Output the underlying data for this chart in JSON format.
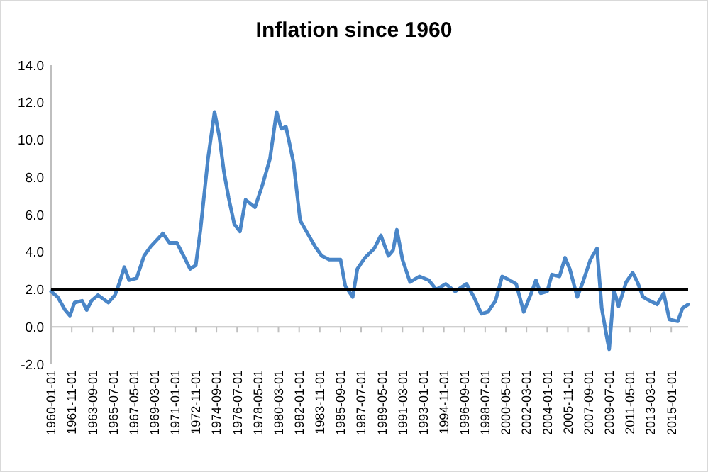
{
  "chart_data": {
    "type": "line",
    "title": "Inflation since 1960",
    "x": [
      "1960-01",
      "1960-08",
      "1961-04",
      "1961-09",
      "1962-02",
      "1962-10",
      "1963-03",
      "1963-08",
      "1964-03",
      "1965-02",
      "1965-09",
      "1966-02",
      "1966-07",
      "1966-12",
      "1967-08",
      "1968-04",
      "1968-11",
      "1969-12",
      "1970-07",
      "1971-03",
      "1971-11",
      "1972-05",
      "1972-11",
      "1973-04",
      "1973-12",
      "1974-07",
      "1974-12",
      "1975-05",
      "1975-10",
      "1976-04",
      "1976-10",
      "1977-04",
      "1978-02",
      "1978-10",
      "1979-06",
      "1980-01",
      "1980-06",
      "1980-11",
      "1981-07",
      "1982-02",
      "1982-10",
      "1983-06",
      "1984-01",
      "1984-09",
      "1985-09",
      "1986-02",
      "1986-10",
      "1987-03",
      "1987-11",
      "1988-09",
      "1989-04",
      "1989-12",
      "1990-05",
      "1990-09",
      "1991-03",
      "1991-11",
      "1992-09",
      "1993-07",
      "1994-03",
      "1995-01",
      "1995-11",
      "1996-11",
      "1997-07",
      "1998-03",
      "1998-10",
      "1999-06",
      "2000-01",
      "2000-09",
      "2001-04",
      "2001-12",
      "2002-08",
      "2003-01",
      "2003-06",
      "2004-01",
      "2004-06",
      "2005-02",
      "2005-08",
      "2006-01",
      "2006-09",
      "2007-03",
      "2007-11",
      "2008-06",
      "2008-11",
      "2009-05",
      "2009-07",
      "2009-12",
      "2010-05",
      "2011-01",
      "2011-08",
      "2012-01",
      "2012-07",
      "2013-02",
      "2013-10",
      "2014-05",
      "2014-11",
      "2015-08",
      "2016-01",
      "2016-07"
    ],
    "series": [
      {
        "color": "#4a86c8",
        "values": [
          1.9,
          1.6,
          0.9,
          0.6,
          1.3,
          1.4,
          0.9,
          1.4,
          1.7,
          1.3,
          1.7,
          2.4,
          3.2,
          2.5,
          2.6,
          3.8,
          4.3,
          5.0,
          4.5,
          4.5,
          3.7,
          3.1,
          3.3,
          5.2,
          9.0,
          11.5,
          10.2,
          8.3,
          6.9,
          5.5,
          5.1,
          6.8,
          6.4,
          7.6,
          9.0,
          11.5,
          10.6,
          10.7,
          8.8,
          5.7,
          5.0,
          4.3,
          3.8,
          3.6,
          3.6,
          2.2,
          1.6,
          3.1,
          3.7,
          4.2,
          4.9,
          3.8,
          4.1,
          5.2,
          3.6,
          2.4,
          2.7,
          2.5,
          2.0,
          2.3,
          1.9,
          2.3,
          1.6,
          0.7,
          0.8,
          1.4,
          2.7,
          2.5,
          2.3,
          0.8,
          1.8,
          2.5,
          1.8,
          1.9,
          2.8,
          2.7,
          3.7,
          3.1,
          1.6,
          2.4,
          3.6,
          4.2,
          1.0,
          -0.7,
          -1.2,
          2.0,
          1.1,
          2.4,
          2.9,
          2.4,
          1.6,
          1.4,
          1.2,
          1.8,
          0.4,
          0.3,
          1.0,
          1.2
        ]
      }
    ],
    "xlim": [
      "1960-01",
      "2016-07"
    ],
    "xticks": [
      "1960-01-01",
      "1961-11-01",
      "1963-09-01",
      "1965-07-01",
      "1967-05-01",
      "1969-03-01",
      "1971-01-01",
      "1972-11-01",
      "1974-09-01",
      "1976-07-01",
      "1978-05-01",
      "1980-03-01",
      "1982-01-01",
      "1983-11-01",
      "1985-09-01",
      "1987-07-01",
      "1989-05-01",
      "1991-03-01",
      "1993-01-01",
      "1994-11-01",
      "1996-09-01",
      "1998-07-01",
      "2000-05-01",
      "2002-03-01",
      "2004-01-01",
      "2005-11-01",
      "2007-09-01",
      "2009-07-01",
      "2011-05-01",
      "2013-03-01",
      "2015-01-01"
    ],
    "ylim": [
      -2,
      14
    ],
    "yticks": [
      {
        "value": -2,
        "label": "-2.0"
      },
      {
        "value": 0,
        "label": "0.0"
      },
      {
        "value": 2,
        "label": "2.0"
      },
      {
        "value": 4,
        "label": "4.0"
      },
      {
        "value": 6,
        "label": "6.0"
      },
      {
        "value": 8,
        "label": "8.0"
      },
      {
        "value": 10,
        "label": "10.0"
      },
      {
        "value": 12,
        "label": "12.0"
      },
      {
        "value": 14,
        "label": "14.0"
      }
    ],
    "ref_lines": [
      {
        "axis": "y",
        "value": 2,
        "color": "#000000"
      }
    ],
    "grid": false,
    "marker": "none",
    "line_style": "solid"
  }
}
